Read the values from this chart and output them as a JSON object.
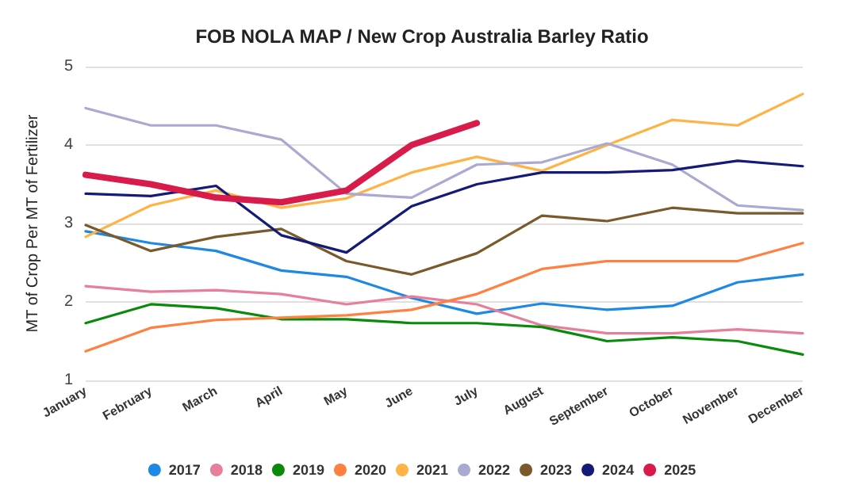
{
  "chart_data": {
    "type": "line",
    "title": "FOB NOLA MAP / New Crop Australia Barley Ratio",
    "ylabel": "MT of Crop Per MT of Fertilizer",
    "categories": [
      "January",
      "February",
      "March",
      "April",
      "May",
      "June",
      "July",
      "August",
      "September",
      "October",
      "November",
      "December"
    ],
    "series": [
      {
        "name": "2017",
        "color": "#1e88e5",
        "values": [
          2.9,
          2.75,
          2.65,
          2.4,
          2.32,
          2.05,
          1.85,
          1.98,
          1.9,
          1.95,
          2.25,
          2.35
        ]
      },
      {
        "name": "2018",
        "color": "#e57f9a",
        "values": [
          2.2,
          2.13,
          2.15,
          2.1,
          1.97,
          2.07,
          1.97,
          1.7,
          1.6,
          1.6,
          1.65,
          1.6
        ]
      },
      {
        "name": "2019",
        "color": "#0a8a0a",
        "values": [
          1.73,
          1.97,
          1.92,
          1.78,
          1.78,
          1.73,
          1.73,
          1.68,
          1.5,
          1.55,
          1.5,
          1.33
        ]
      },
      {
        "name": "2020",
        "color": "#ff8040",
        "values": [
          1.37,
          1.67,
          1.77,
          1.8,
          1.83,
          1.9,
          2.1,
          2.42,
          2.52,
          2.52,
          2.52,
          2.75
        ]
      },
      {
        "name": "2021",
        "color": "#ffb347",
        "values": [
          2.83,
          3.23,
          3.42,
          3.2,
          3.32,
          3.65,
          3.85,
          3.67,
          4.0,
          4.32,
          4.25,
          4.65
        ]
      },
      {
        "name": "2022",
        "color": "#a9a9d2",
        "values": [
          4.47,
          4.25,
          4.25,
          4.07,
          3.38,
          3.33,
          3.75,
          3.78,
          4.02,
          3.75,
          3.23,
          3.17
        ]
      },
      {
        "name": "2023",
        "color": "#7a5a2a",
        "values": [
          2.98,
          2.65,
          2.83,
          2.93,
          2.52,
          2.35,
          2.62,
          3.1,
          3.03,
          3.2,
          3.13,
          3.13
        ]
      },
      {
        "name": "2024",
        "color": "#141a78",
        "values": [
          3.38,
          3.35,
          3.48,
          2.85,
          2.63,
          3.22,
          3.5,
          3.65,
          3.65,
          3.68,
          3.8,
          3.73
        ]
      },
      {
        "name": "2025",
        "color": "#d81b4a",
        "values": [
          3.62,
          3.5,
          3.33,
          3.27,
          3.42,
          4.0,
          4.28,
          null,
          null,
          null,
          null,
          null
        ]
      }
    ],
    "ylim": [
      1,
      5
    ],
    "yticks": [
      1,
      2,
      3,
      4,
      5
    ],
    "grid": "y",
    "legend": "bottom",
    "marker": "none"
  }
}
